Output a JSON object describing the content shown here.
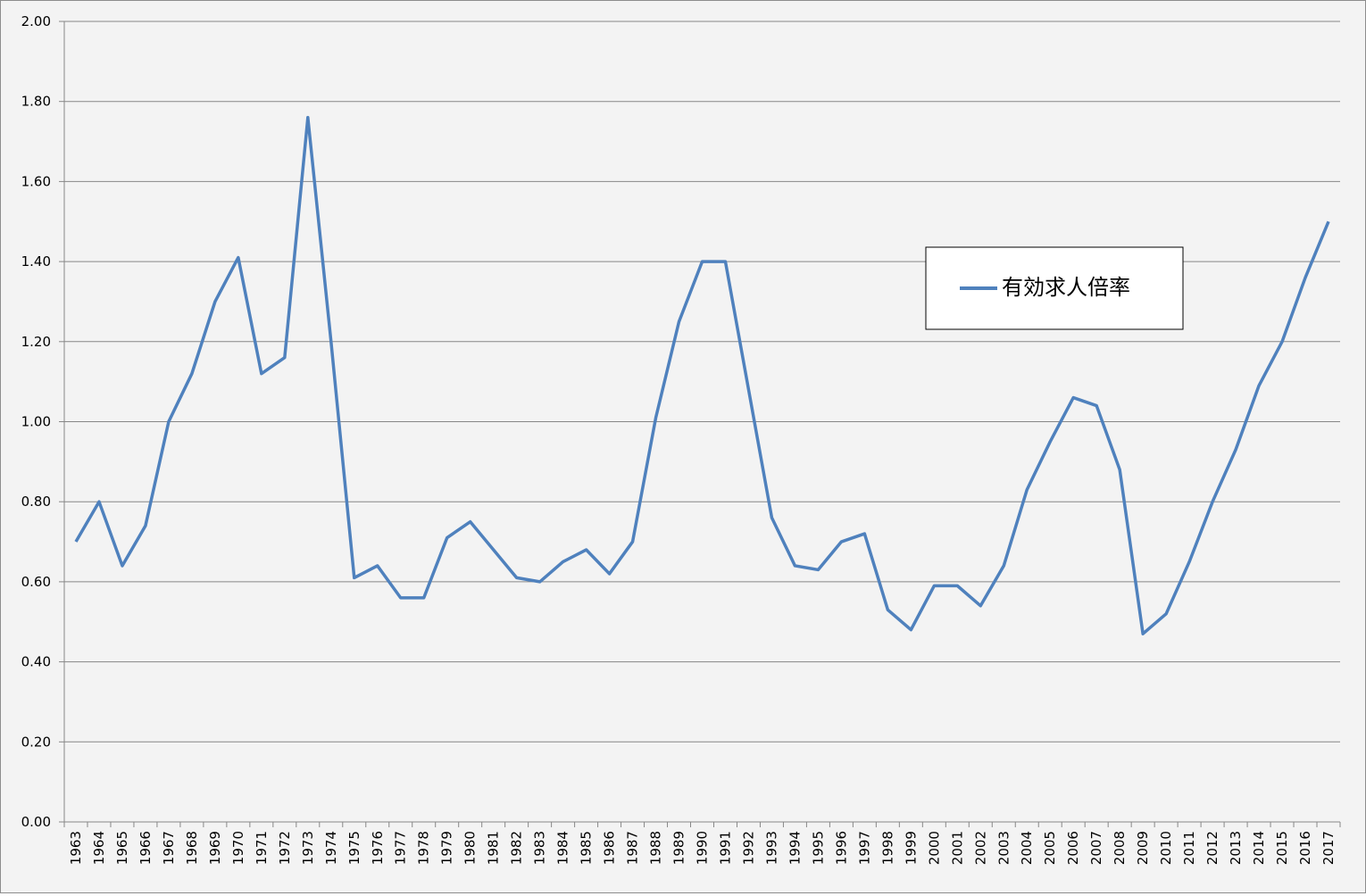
{
  "chart_data": {
    "type": "line",
    "title": "",
    "xlabel": "",
    "ylabel": "",
    "x": [
      "1963",
      "1964",
      "1965",
      "1966",
      "1967",
      "1968",
      "1969",
      "1970",
      "1971",
      "1972",
      "1973",
      "1974",
      "1975",
      "1976",
      "1977",
      "1978",
      "1979",
      "1980",
      "1981",
      "1982",
      "1983",
      "1984",
      "1985",
      "1986",
      "1987",
      "1988",
      "1989",
      "1990",
      "1991",
      "1992",
      "1993",
      "1994",
      "1995",
      "1996",
      "1997",
      "1998",
      "1999",
      "2000",
      "2001",
      "2002",
      "2003",
      "2004",
      "2005",
      "2006",
      "2007",
      "2008",
      "2009",
      "2010",
      "2011",
      "2012",
      "2013",
      "2014",
      "2015",
      "2016",
      "2017"
    ],
    "series": [
      {
        "name": "有効求人倍率",
        "color": "#4f81bd",
        "values": [
          0.7,
          0.8,
          0.64,
          0.74,
          1.0,
          1.12,
          1.3,
          1.41,
          1.12,
          1.16,
          1.76,
          1.2,
          0.61,
          0.64,
          0.56,
          0.56,
          0.71,
          0.75,
          0.68,
          0.61,
          0.6,
          0.65,
          0.68,
          0.62,
          0.7,
          1.01,
          1.25,
          1.4,
          1.4,
          1.08,
          0.76,
          0.64,
          0.63,
          0.7,
          0.72,
          0.53,
          0.48,
          0.59,
          0.59,
          0.54,
          0.64,
          0.83,
          0.95,
          1.06,
          1.04,
          0.88,
          0.47,
          0.52,
          0.65,
          0.8,
          0.93,
          1.09,
          1.2,
          1.36,
          1.5
        ]
      }
    ],
    "ylim": [
      0,
      2
    ],
    "yticks": [
      "0.00",
      "0.20",
      "0.40",
      "0.60",
      "0.80",
      "1.00",
      "1.20",
      "1.40",
      "1.60",
      "1.80",
      "2.00"
    ],
    "grid": true,
    "legend_position": "right-middle-upper",
    "colors": {
      "background": "#f3f3f3",
      "gridline": "#878787",
      "axis": "#878787",
      "border": "#8c8c8c"
    }
  }
}
